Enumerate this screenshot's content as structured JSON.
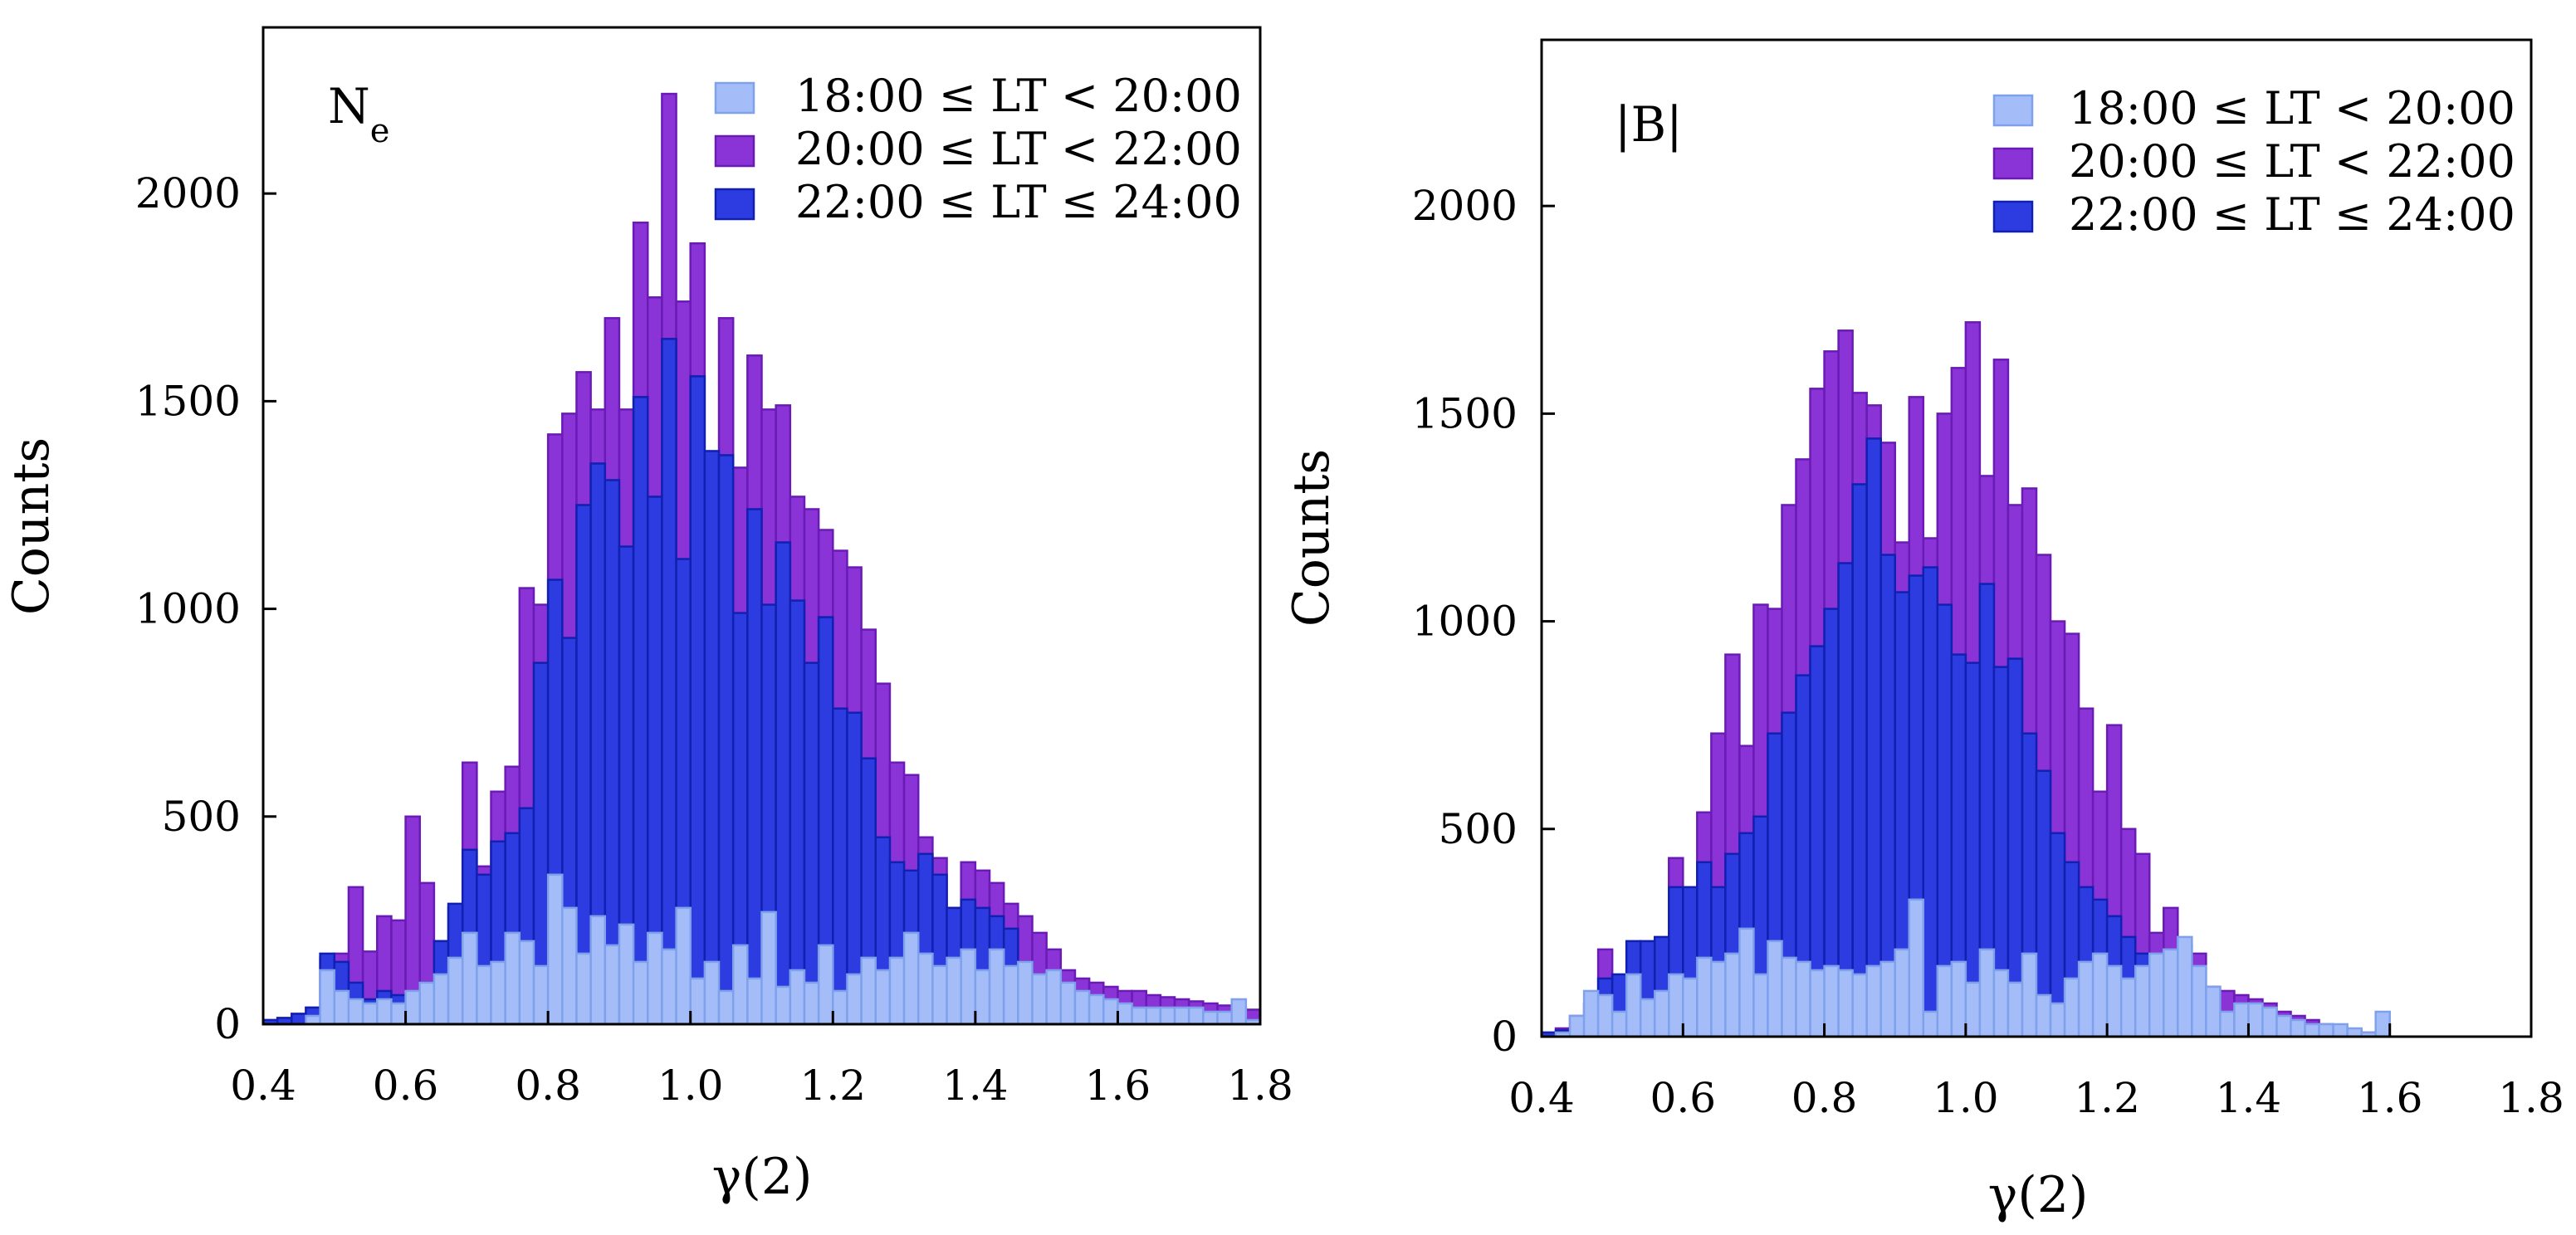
{
  "colors": {
    "s18": {
      "fill": "#a4bdf8",
      "stroke": "#7fa1ec"
    },
    "s20": {
      "fill": "#8a34d8",
      "stroke": "#6a1bb5"
    },
    "s22": {
      "fill": "#2d3ce0",
      "stroke": "#1020b0"
    }
  },
  "chart_data": [
    {
      "type": "bar",
      "title": "N",
      "title_sub": "e",
      "xlabel": "γ(2)",
      "ylabel": "Counts",
      "xlim": [
        0.4,
        1.8
      ],
      "ylim": [
        0,
        2400
      ],
      "xticks": [
        "0.4",
        "0.6",
        "0.8",
        "1.0",
        "1.2",
        "1.4",
        "1.6",
        "1.8"
      ],
      "yticks": [
        "0",
        "500",
        "1000",
        "1500",
        "2000"
      ],
      "legend_position": "top-right",
      "bin_start": 0.4,
      "bin_width": 0.02,
      "series": [
        {
          "name": "20:00 ≤ LT < 22:00",
          "key": "s20",
          "values": [
            10,
            15,
            25,
            40,
            160,
            170,
            330,
            175,
            260,
            250,
            500,
            340,
            200,
            280,
            630,
            380,
            560,
            620,
            1050,
            1010,
            1420,
            1470,
            1570,
            1480,
            1700,
            1480,
            1930,
            1750,
            2240,
            1740,
            1880,
            1360,
            1700,
            1340,
            1610,
            1480,
            1490,
            1270,
            1240,
            1190,
            1140,
            1100,
            950,
            820,
            630,
            600,
            450,
            400,
            280,
            390,
            370,
            340,
            290,
            260,
            220,
            180,
            130,
            110,
            100,
            90,
            80,
            80,
            70,
            65,
            60,
            55,
            50,
            45,
            40,
            35
          ]
        },
        {
          "name": "22:00 ≤ LT ≤ 24:00",
          "key": "s22",
          "values": [
            10,
            15,
            25,
            40,
            170,
            150,
            100,
            60,
            80,
            70,
            70,
            100,
            200,
            290,
            420,
            360,
            440,
            460,
            520,
            870,
            1070,
            930,
            1250,
            1350,
            1310,
            1150,
            1510,
            1270,
            1650,
            1120,
            1560,
            1380,
            1370,
            990,
            1240,
            1010,
            1160,
            1020,
            870,
            980,
            760,
            750,
            640,
            450,
            390,
            370,
            410,
            360,
            280,
            300,
            280,
            260,
            230,
            150,
            110,
            80,
            60,
            50,
            40,
            35,
            30,
            25,
            20,
            15,
            10,
            10,
            8,
            5,
            4,
            3
          ]
        },
        {
          "name": "18:00 ≤ LT < 20:00",
          "key": "s18",
          "values": [
            0,
            0,
            0,
            20,
            130,
            80,
            60,
            50,
            60,
            50,
            80,
            100,
            120,
            160,
            220,
            140,
            150,
            220,
            200,
            140,
            360,
            280,
            170,
            260,
            190,
            240,
            150,
            220,
            180,
            280,
            110,
            150,
            80,
            190,
            110,
            270,
            90,
            130,
            100,
            190,
            80,
            120,
            160,
            130,
            160,
            220,
            170,
            140,
            160,
            180,
            130,
            180,
            140,
            150,
            120,
            130,
            100,
            80,
            70,
            60,
            50,
            40,
            40,
            40,
            40,
            40,
            30,
            30,
            60,
            10
          ]
        }
      ]
    },
    {
      "type": "bar",
      "title": "|B|",
      "title_sub": "",
      "xlabel": "γ(2)",
      "ylabel": "Counts",
      "xlim": [
        0.4,
        1.8
      ],
      "ylim": [
        0,
        2400
      ],
      "xticks": [
        "0.4",
        "0.6",
        "0.8",
        "1.0",
        "1.2",
        "1.4",
        "1.6",
        "1.8"
      ],
      "yticks": [
        "0",
        "500",
        "1000",
        "1500",
        "2000"
      ],
      "legend_position": "top-right",
      "bin_start": 0.4,
      "bin_width": 0.02,
      "series": [
        {
          "name": "20:00 ≤ LT < 22:00",
          "key": "s20",
          "values": [
            10,
            20,
            50,
            80,
            210,
            120,
            160,
            180,
            200,
            430,
            350,
            540,
            730,
            920,
            700,
            1040,
            1030,
            1280,
            1390,
            1560,
            1650,
            1700,
            1550,
            1520,
            1430,
            1190,
            1540,
            1200,
            1500,
            1610,
            1720,
            1350,
            1630,
            1280,
            1320,
            1160,
            1000,
            970,
            790,
            590,
            750,
            500,
            440,
            250,
            310,
            220,
            200,
            120,
            110,
            100,
            90,
            80,
            60,
            50,
            40,
            30,
            20,
            15,
            10,
            5
          ]
        },
        {
          "name": "22:00 ≤ LT ≤ 24:00",
          "key": "s22",
          "values": [
            10,
            15,
            20,
            30,
            140,
            150,
            230,
            230,
            240,
            360,
            360,
            420,
            360,
            440,
            490,
            530,
            730,
            780,
            870,
            940,
            1030,
            1140,
            1330,
            1440,
            1160,
            1070,
            1110,
            1130,
            1040,
            920,
            900,
            1090,
            890,
            910,
            730,
            640,
            490,
            420,
            360,
            330,
            290,
            240,
            200,
            150,
            130,
            100,
            80,
            60,
            50,
            40,
            30,
            20,
            15,
            10,
            10,
            5,
            5,
            3,
            2,
            2
          ]
        },
        {
          "name": "18:00 ≤ LT < 20:00",
          "key": "s18",
          "values": [
            0,
            10,
            50,
            110,
            100,
            60,
            150,
            90,
            110,
            150,
            140,
            190,
            180,
            200,
            260,
            150,
            230,
            190,
            180,
            160,
            170,
            160,
            150,
            170,
            180,
            210,
            330,
            60,
            170,
            180,
            130,
            210,
            160,
            130,
            200,
            100,
            80,
            140,
            180,
            200,
            170,
            140,
            170,
            200,
            210,
            240,
            170,
            120,
            60,
            80,
            80,
            70,
            50,
            40,
            30,
            30,
            30,
            20,
            10,
            60
          ]
        }
      ]
    }
  ]
}
